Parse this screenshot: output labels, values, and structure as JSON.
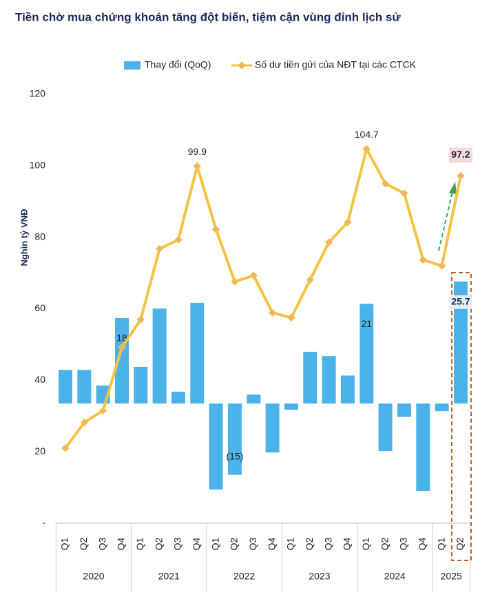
{
  "chart_data": {
    "type": "bar-line",
    "title": "Tiền chờ mua chứng khoán tăng đột biến, tiệm cận vùng đỉnh lịch sử",
    "y_label": "Nghìn tỷ VNĐ",
    "category_groups": [
      {
        "label": "2020",
        "categories": [
          "Q1",
          "Q2",
          "Q3",
          "Q4"
        ]
      },
      {
        "label": "2021",
        "categories": [
          "Q1",
          "Q2",
          "Q3",
          "Q4"
        ]
      },
      {
        "label": "2022",
        "categories": [
          "Q1",
          "Q2",
          "Q3",
          "Q4"
        ]
      },
      {
        "label": "2023",
        "categories": [
          "Q1",
          "Q2",
          "Q3",
          "Q4"
        ]
      },
      {
        "label": "2024",
        "categories": [
          "Q1",
          "Q2",
          "Q3",
          "Q4"
        ]
      },
      {
        "label": "2025",
        "categories": [
          "Q1",
          "Q2"
        ]
      }
    ],
    "series": [
      {
        "name": "Thay đổi (QoQ)",
        "type": "bar",
        "axis": "y2",
        "color": "#4cb2ea",
        "values": [
          7.1,
          7.1,
          3.8,
          18,
          7.7,
          20,
          2.5,
          21.2,
          -18.1,
          -15,
          1.9,
          -10.3,
          -1.3,
          10.9,
          10,
          5.9,
          21,
          -10,
          -2.8,
          -18.4,
          -1.6,
          25.7
        ],
        "value_labels": [
          null,
          null,
          null,
          "18",
          null,
          null,
          null,
          null,
          null,
          "(15)",
          null,
          null,
          null,
          null,
          null,
          null,
          "21",
          null,
          null,
          null,
          null,
          "25.7"
        ]
      },
      {
        "name": "Số dư tiền gửi của NĐT tại các CTCK",
        "type": "line",
        "color": "#f5c242",
        "marker_color": "#f0b36a",
        "values": [
          21,
          28.2,
          31.5,
          49.2,
          57,
          76.8,
          79.3,
          99.9,
          82.2,
          67.6,
          69.3,
          58.9,
          57.5,
          68.1,
          78.6,
          84.2,
          104.7,
          95,
          92.3,
          73.7,
          72,
          97.2
        ],
        "value_labels": [
          null,
          null,
          null,
          null,
          null,
          null,
          null,
          "99.9",
          null,
          null,
          null,
          null,
          null,
          null,
          null,
          null,
          "104.7",
          null,
          null,
          null,
          null,
          "97.2"
        ]
      }
    ],
    "ylim": [
      0,
      120
    ],
    "yticks": [
      {
        "value": 0,
        "label": "-"
      },
      20,
      40,
      60,
      80,
      100,
      120
    ],
    "y2lim": [
      -25.2,
      65.1
    ],
    "grid": false
  }
}
